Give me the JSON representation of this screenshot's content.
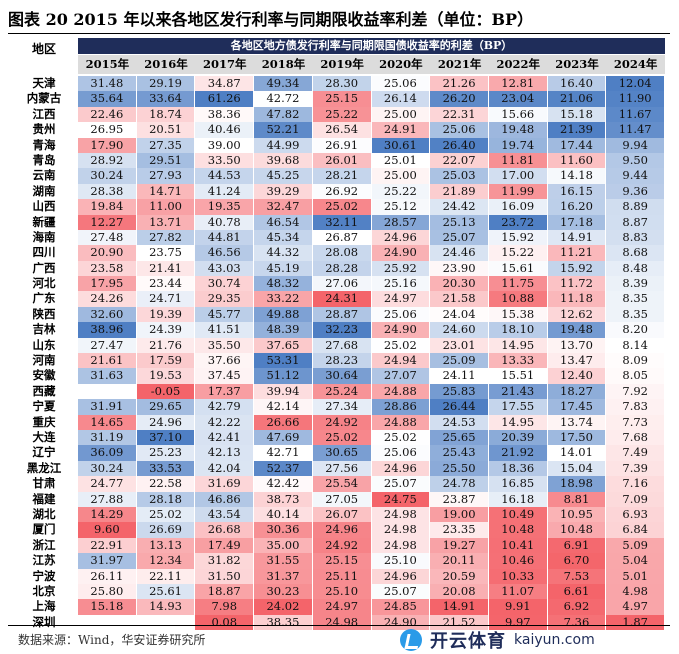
{
  "chart_data": {
    "type": "heatmap",
    "title": "图表 20 2015 年以来各地区发行利率与同期限收益率利差（单位：BP）",
    "subtitle": "各地区地方债发行利率与同期限国债收益率的利差（BP）",
    "row_header": "地区",
    "columns": [
      "2015年",
      "2016年",
      "2017年",
      "2018年",
      "2019年",
      "2020年",
      "2021年",
      "2022年",
      "2023年",
      "2024年"
    ],
    "rows": [
      {
        "region": "天津",
        "values": [
          31.48,
          29.19,
          34.87,
          49.34,
          28.3,
          25.06,
          21.26,
          12.81,
          16.4,
          12.04
        ]
      },
      {
        "region": "内蒙古",
        "values": [
          35.64,
          33.64,
          61.26,
          42.72,
          25.15,
          26.14,
          26.2,
          23.04,
          21.06,
          11.9
        ]
      },
      {
        "region": "江西",
        "values": [
          22.46,
          18.74,
          38.36,
          47.82,
          25.22,
          25.0,
          22.31,
          15.66,
          15.18,
          11.67
        ]
      },
      {
        "region": "贵州",
        "values": [
          26.95,
          20.51,
          40.46,
          52.21,
          26.54,
          24.91,
          25.06,
          19.48,
          21.39,
          11.47
        ]
      },
      {
        "region": "青海",
        "values": [
          17.9,
          27.35,
          39.0,
          44.99,
          26.91,
          30.61,
          26.4,
          19.74,
          17.44,
          9.94
        ]
      },
      {
        "region": "青岛",
        "values": [
          28.92,
          29.51,
          33.5,
          39.68,
          26.01,
          25.01,
          22.07,
          11.81,
          11.6,
          9.5
        ]
      },
      {
        "region": "云南",
        "values": [
          30.24,
          27.93,
          44.53,
          45.25,
          28.21,
          25.0,
          25.03,
          17.0,
          14.18,
          9.44
        ]
      },
      {
        "region": "湖南",
        "values": [
          28.38,
          14.71,
          41.24,
          39.29,
          26.92,
          25.22,
          21.89,
          11.99,
          16.15,
          9.36
        ]
      },
      {
        "region": "山西",
        "values": [
          19.84,
          11.0,
          19.35,
          32.47,
          25.02,
          25.12,
          24.42,
          16.09,
          16.2,
          8.89
        ]
      },
      {
        "region": "新疆",
        "values": [
          12.27,
          13.71,
          40.78,
          46.54,
          32.11,
          28.57,
          25.13,
          23.72,
          17.18,
          8.87
        ]
      },
      {
        "region": "海南",
        "values": [
          27.48,
          27.82,
          44.81,
          45.34,
          26.87,
          24.96,
          25.07,
          15.92,
          14.91,
          8.83
        ]
      },
      {
        "region": "四川",
        "values": [
          20.9,
          23.75,
          46.56,
          44.32,
          28.08,
          24.9,
          24.46,
          15.22,
          11.21,
          8.68
        ]
      },
      {
        "region": "广西",
        "values": [
          23.58,
          21.41,
          43.03,
          45.19,
          28.28,
          25.92,
          23.9,
          15.61,
          15.92,
          8.48
        ]
      },
      {
        "region": "河北",
        "values": [
          17.95,
          23.44,
          30.74,
          48.32,
          27.06,
          25.16,
          20.3,
          11.75,
          11.72,
          8.39
        ]
      },
      {
        "region": "广东",
        "values": [
          24.26,
          24.71,
          29.35,
          33.22,
          24.31,
          24.97,
          21.58,
          10.88,
          11.18,
          8.35
        ]
      },
      {
        "region": "陕西",
        "values": [
          32.6,
          19.39,
          45.77,
          49.88,
          28.87,
          25.06,
          24.04,
          15.38,
          12.62,
          8.35
        ]
      },
      {
        "region": "吉林",
        "values": [
          38.96,
          24.39,
          41.51,
          48.39,
          32.23,
          24.9,
          24.6,
          18.1,
          19.48,
          8.2
        ]
      },
      {
        "region": "山东",
        "values": [
          27.47,
          21.76,
          35.5,
          37.65,
          27.68,
          25.02,
          23.01,
          14.95,
          13.7,
          8.14
        ]
      },
      {
        "region": "河南",
        "values": [
          21.61,
          17.59,
          37.66,
          53.31,
          28.23,
          24.94,
          25.09,
          13.33,
          13.47,
          8.09
        ]
      },
      {
        "region": "安徽",
        "values": [
          31.63,
          19.53,
          37.45,
          51.12,
          30.64,
          27.07,
          24.11,
          15.51,
          12.4,
          8.05
        ]
      },
      {
        "region": "西藏",
        "values": [
          null,
          -0.05,
          17.37,
          39.94,
          25.24,
          24.88,
          25.83,
          21.43,
          18.27,
          7.92
        ]
      },
      {
        "region": "宁夏",
        "values": [
          31.91,
          29.65,
          42.79,
          42.14,
          27.34,
          28.86,
          26.44,
          17.55,
          17.45,
          7.83
        ]
      },
      {
        "region": "重庆",
        "values": [
          14.65,
          24.96,
          42.22,
          26.66,
          24.92,
          24.88,
          24.53,
          14.95,
          13.74,
          7.73
        ]
      },
      {
        "region": "大连",
        "values": [
          31.19,
          37.1,
          42.41,
          47.69,
          25.02,
          25.02,
          25.65,
          20.39,
          17.5,
          7.68
        ]
      },
      {
        "region": "辽宁",
        "values": [
          36.09,
          25.23,
          42.13,
          42.71,
          30.65,
          25.06,
          25.43,
          21.92,
          14.01,
          7.49
        ]
      },
      {
        "region": "黑龙江",
        "values": [
          30.24,
          33.53,
          42.04,
          52.37,
          27.56,
          24.96,
          25.5,
          18.36,
          15.04,
          7.39
        ]
      },
      {
        "region": "甘肃",
        "values": [
          24.77,
          22.58,
          31.69,
          42.42,
          25.54,
          25.07,
          24.78,
          16.85,
          18.98,
          7.16
        ]
      },
      {
        "region": "福建",
        "values": [
          27.88,
          28.18,
          46.86,
          38.73,
          27.05,
          24.75,
          23.87,
          16.18,
          8.81,
          7.09
        ]
      },
      {
        "region": "湖北",
        "values": [
          14.29,
          25.02,
          43.54,
          40.14,
          26.07,
          24.98,
          19.0,
          10.49,
          10.95,
          6.93
        ]
      },
      {
        "region": "厦门",
        "values": [
          9.6,
          26.69,
          26.68,
          30.36,
          24.96,
          24.98,
          23.35,
          10.48,
          10.48,
          6.84
        ]
      },
      {
        "region": "浙江",
        "values": [
          22.91,
          13.13,
          17.49,
          35.0,
          24.92,
          24.98,
          19.27,
          10.41,
          6.91,
          5.09
        ]
      },
      {
        "region": "江苏",
        "values": [
          31.97,
          12.34,
          31.82,
          31.55,
          25.15,
          25.1,
          20.11,
          10.46,
          6.7,
          5.04
        ]
      },
      {
        "region": "宁波",
        "values": [
          26.11,
          22.11,
          31.5,
          31.37,
          25.11,
          24.96,
          20.59,
          10.33,
          7.53,
          5.01
        ]
      },
      {
        "region": "北京",
        "values": [
          25.8,
          25.61,
          18.87,
          30.23,
          25.1,
          25.07,
          20.08,
          11.07,
          6.61,
          4.98
        ]
      },
      {
        "region": "上海",
        "values": [
          15.18,
          14.93,
          7.98,
          24.02,
          24.97,
          24.85,
          14.91,
          9.91,
          6.92,
          4.97
        ]
      },
      {
        "region": "深圳",
        "values": [
          null,
          null,
          0.08,
          38.35,
          24.98,
          24.9,
          21.52,
          9.97,
          7.36,
          1.87
        ]
      }
    ],
    "colors": {
      "high": "#4f7fc4",
      "low": "#f4646a",
      "mid": "#ffffff"
    }
  },
  "footer": {
    "source": "数据来源：Wind，华安证券研究所"
  },
  "watermark": {
    "brand": "开云体育",
    "url": "kaiyun.com"
  }
}
